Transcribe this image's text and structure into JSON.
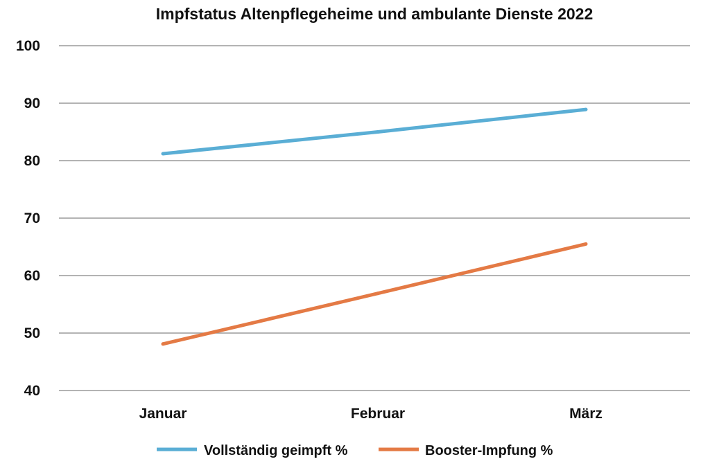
{
  "chart_data": {
    "type": "line",
    "title": "Impfstatus Altenpflegeheime und ambulante Dienste 2022",
    "xlabel": "",
    "ylabel": "",
    "categories": [
      "Januar",
      "Februar",
      "März"
    ],
    "ylim": [
      40,
      100
    ],
    "yticks": [
      40,
      50,
      60,
      70,
      80,
      90,
      100
    ],
    "grid": true,
    "legend_position": "bottom",
    "series": [
      {
        "name": "Vollständig geimpft %",
        "values": [
          81.2,
          85.0,
          88.9
        ],
        "color": "#5aaed5"
      },
      {
        "name": "Booster-Impfung %",
        "values": [
          48.1,
          56.9,
          65.5
        ],
        "color": "#e47a45"
      }
    ]
  }
}
